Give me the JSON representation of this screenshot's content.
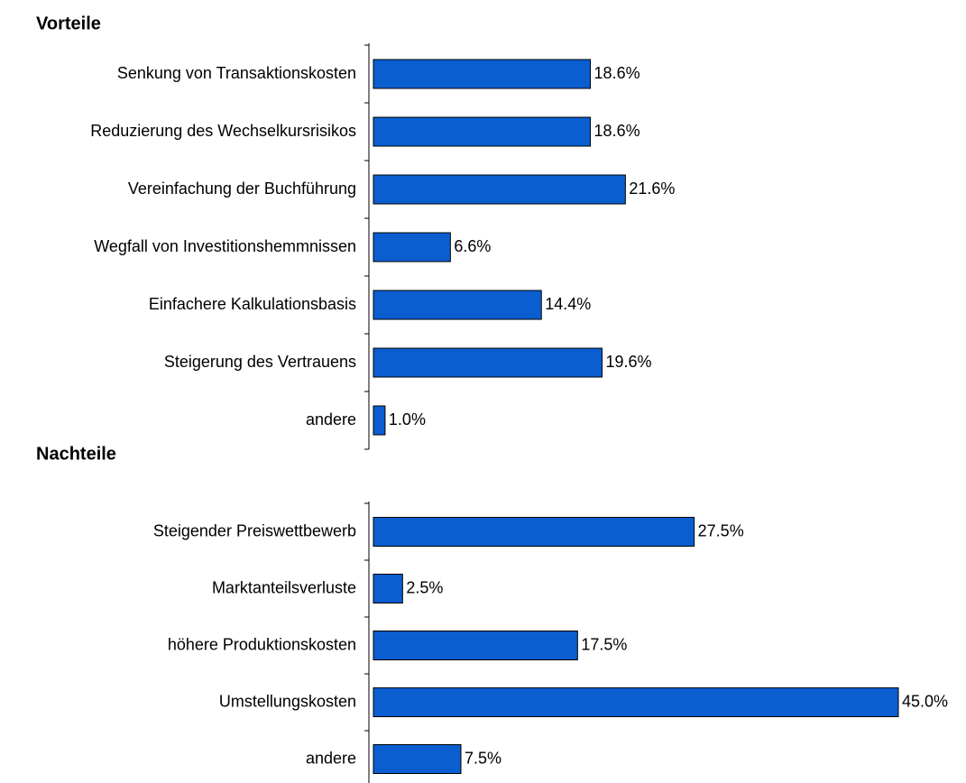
{
  "chart_data": [
    {
      "type": "hbar",
      "title": "Vorteile",
      "categories": [
        "Senkung von Transaktionskosten",
        "Reduzierung des Wechselkursrisikos",
        "Vereinfachung der Buchführung",
        "Wegfall von Investitionshemmnissen",
        "Einfachere Kalkulationsbasis",
        "Steigerung des Vertrauens",
        "andere"
      ],
      "values": [
        18.6,
        18.6,
        21.6,
        6.6,
        14.4,
        19.6,
        1.0
      ],
      "value_labels": [
        "18.6%",
        "18.6%",
        "21.6%",
        "6.6%",
        "14.4%",
        "19.6%",
        "1.0%"
      ],
      "color": "#0a5ed0",
      "xlim": [
        0,
        45
      ]
    },
    {
      "type": "hbar",
      "title": "Nachteile",
      "categories": [
        "Steigender Preiswettbewerb",
        "Marktanteilsverluste",
        "höhere Produktionskosten",
        "Umstellungskosten",
        "andere"
      ],
      "values": [
        27.5,
        2.5,
        17.5,
        45.0,
        7.5
      ],
      "value_labels": [
        "27.5%",
        "2.5%",
        "17.5%",
        "45.0%",
        "7.5%"
      ],
      "color": "#0a5ed0",
      "xlim": [
        0,
        45
      ]
    }
  ]
}
